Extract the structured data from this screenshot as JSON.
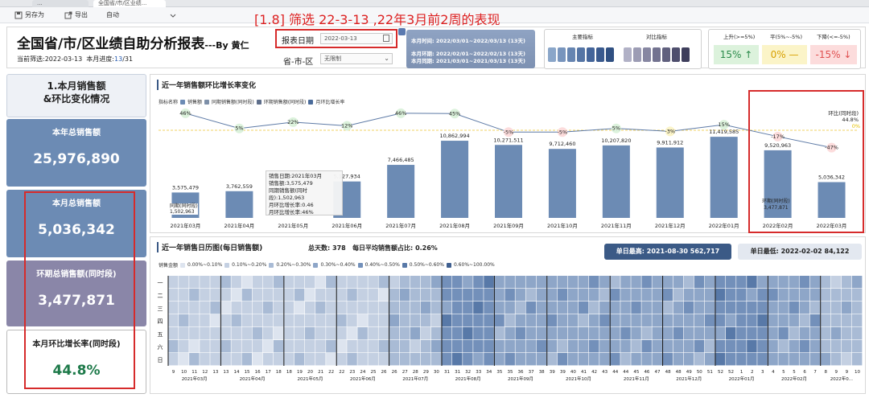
{
  "tabs": [
    "...",
    "全国省/市/区业绩..."
  ],
  "toolbar": {
    "save_as": "另存为",
    "export": "导出",
    "mode": "自动"
  },
  "annotation": "[1.8] 筛选 22-3-13 ,22年3月前2周的表现",
  "header": {
    "title": "全国省/市/区业绩自助分析报表",
    "author": "---By 黄仁",
    "filter_prefix": "当前筛选:",
    "filter_date": "2022-03-13",
    "progress_prefix": "本月进度:",
    "progress_num": "13",
    "progress_den": "/31",
    "report_date_label": "报表日期",
    "report_date_value": "2022-03-13",
    "region_label": "省-市-区",
    "region_value": "无限制",
    "period_current": "本月时间: 2022/03/01~2022/03/13 (13天)",
    "period_prev": "本月环期: 2022/02/01~2022/02/13 (13天)",
    "period_yoy": "本月同期: 2021/03/01~2021/03/13 (13天)",
    "legend_main": "主要指标",
    "legend_compare": "对比指标",
    "up_label": "上升(>=5%)",
    "flat_label": "平(5%~-5%)",
    "down_label": "下降(<=-5%)",
    "up_val": "15%",
    "flat_val": "0%",
    "down_val": "-15%"
  },
  "cards": {
    "month_sales_title": "1.本月销售额\n&环比变化情况",
    "year_total_label": "本年总销售额",
    "year_total_value": "25,976,890",
    "month_total_label": "本月总销售额",
    "month_total_value": "5,036,342",
    "prev_total_label": "环期总销售额(同时段)",
    "prev_total_value": "3,477,871",
    "growth_label": "本月环比增长率(同时段)",
    "growth_value": "44.8%"
  },
  "chart_panel": {
    "title": "近一年销售额环比增长率变化",
    "legend_title": "指标名称",
    "legend_items": [
      "销售额",
      "同期销售额(同时段)",
      "环期销售额(同时段)",
      "月环比增长率"
    ],
    "annotation_ring": "环比(同时段)",
    "annotation_ring_val": "44.8%",
    "zero_label": "0%",
    "same_period_label": "同期(同时段)",
    "same_period_val": "1,502,963",
    "prev_period_label": "环期(同时段)",
    "prev_period_val": "3,477,871"
  },
  "tooltip": {
    "l1": "销售日期:2021年03月",
    "l2": "销售额:3,575,479",
    "l3": "同期销售额(同时段):1,502,963",
    "l4": "月环比增长率:0.46",
    "l5": "月环比增长率:46%"
  },
  "chart_data": {
    "type": "bar",
    "categories": [
      "2021年03月",
      "2021年04月",
      "2021年05月",
      "2021年06月",
      "2021年07月",
      "2021年08月",
      "2021年09月",
      "2021年10月",
      "2021年11月",
      "2021年12月",
      "2022年01月",
      "2022年02月",
      "2022年03月"
    ],
    "series": [
      {
        "name": "销售额",
        "values": [
          3575479,
          3762559,
          null,
          5127934,
          7466485,
          10862994,
          10271511,
          9712460,
          10207820,
          9911912,
          11419585,
          9520963,
          5036342
        ]
      },
      {
        "name": "月环比增长率",
        "values": [
          46,
          5,
          22,
          12,
          46,
          45,
          -5,
          -5,
          5,
          -3,
          15,
          -17,
          -47
        ]
      }
    ],
    "bar_labels": [
      "3,575,479",
      "3,762,559",
      "",
      "5,127,934",
      "7,466,485",
      "10,862,994",
      "10,271,511",
      "9,712,460",
      "10,207,820",
      "9,911,912",
      "11,419,585",
      "9,520,963",
      "5,036,342"
    ],
    "rate_labels": [
      "46%",
      "5%",
      "22%",
      "12%",
      "46%",
      "45%",
      "-5%",
      "-5%",
      "5%",
      "-3%",
      "15%",
      "-17%",
      "-47%"
    ],
    "ylim": [
      0,
      12000000
    ]
  },
  "calendar": {
    "title": "近一年销售日历图(每日销售额)",
    "total_days_label": "总天数:",
    "total_days": "378",
    "avg_label": "每日平均销售额占比:",
    "avg_val": "0.26%",
    "max_label": "单日最高:",
    "max_date": "2021-08-30",
    "max_val": "562,717",
    "min_label": "单日最低:",
    "min_date": "2022-02-02",
    "min_val": "84,122",
    "legend_title": "销售金额",
    "legend_items": [
      "0.00%~0.10%",
      "0.10%~0.20%",
      "0.20%~0.30%",
      "0.30%~0.40%",
      "0.40%~0.50%",
      "0.50%~0.60%",
      "0.60%~100.00%"
    ],
    "legend_colors": [
      "#dde4ef",
      "#c4d0e2",
      "#a9bbd5",
      "#8ea6c8",
      "#7390ba",
      "#5879a8",
      "#3f5f8f"
    ],
    "weekdays": [
      "一",
      "二",
      "三",
      "四",
      "五",
      "六",
      "日"
    ],
    "weeks": [
      "9",
      "10",
      "11",
      "12",
      "13",
      "13",
      "14",
      "15",
      "16",
      "17",
      "18",
      "18",
      "19",
      "20",
      "21",
      "22",
      "22",
      "23",
      "24",
      "25",
      "26",
      "26",
      "27",
      "28",
      "29",
      "30",
      "31",
      "31",
      "32",
      "33",
      "34",
      "35",
      "35",
      "36",
      "37",
      "38",
      "39",
      "39",
      "40",
      "41",
      "42",
      "43",
      "44",
      "44",
      "45",
      "46",
      "47",
      "48",
      "48",
      "49",
      "50",
      "51",
      "52",
      "52",
      "1",
      "2",
      "3",
      "4",
      "5",
      "5",
      "6",
      "7",
      "8",
      "9",
      "9",
      "10"
    ],
    "months": [
      "2021年03月",
      "2021年04月",
      "2021年05月",
      "2021年06月",
      "2021年07月",
      "2021年08月",
      "2021年09月",
      "2021年10月",
      "2021年11月",
      "2021年12月",
      "2022年01月",
      "2022年02月",
      "2022年0..."
    ]
  }
}
